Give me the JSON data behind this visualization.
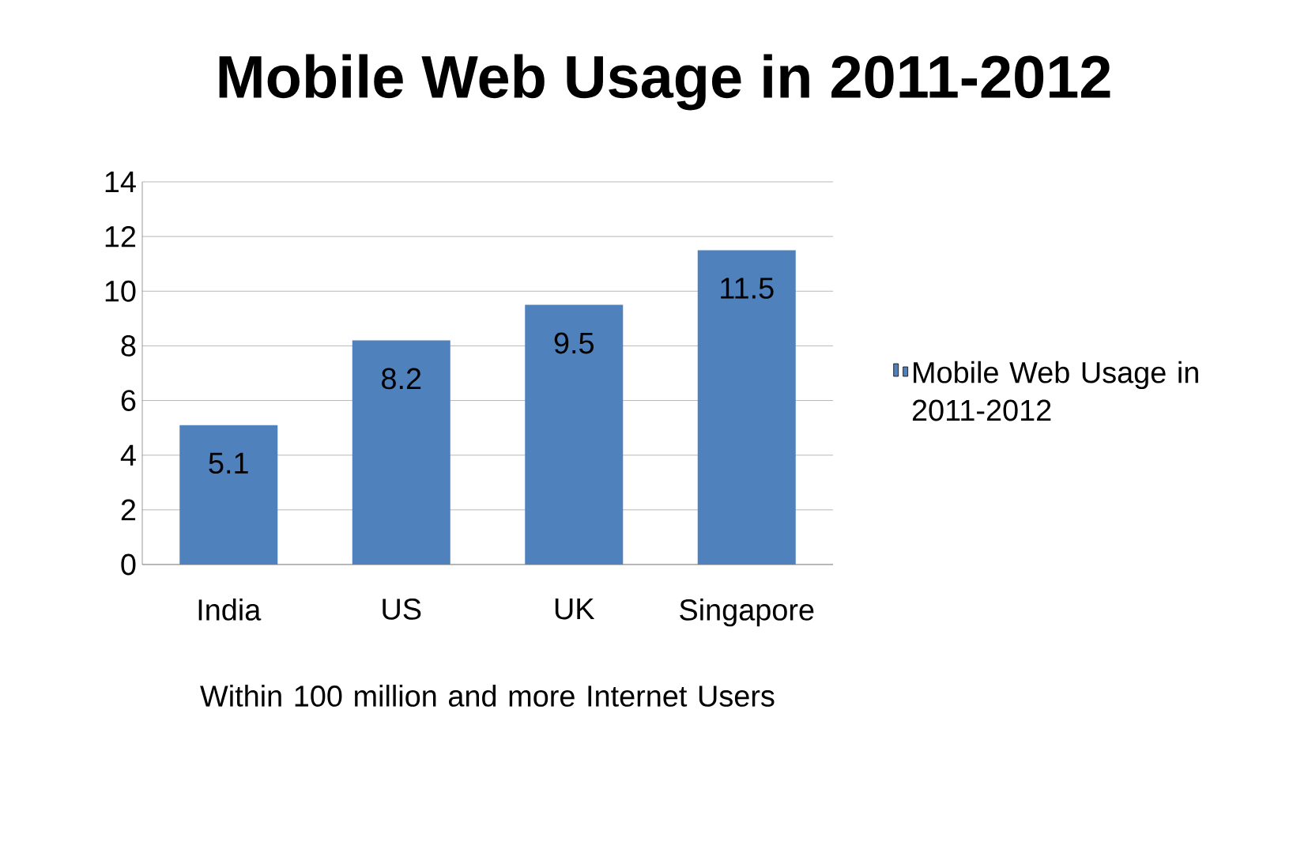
{
  "chart_data": {
    "type": "bar",
    "title": "Mobile Web Usage in 2011-2012",
    "xlabel": "Within 100 million and more Internet Users",
    "categories": [
      "India",
      "US",
      "UK",
      "Singapore"
    ],
    "series": [
      {
        "name": "Mobile Web Usage in 2011-2012",
        "color": "#4f81bd",
        "values": [
          5.1,
          8.2,
          9.5,
          11.5
        ]
      }
    ],
    "ylim": [
      0,
      14
    ],
    "yticks": [
      0,
      2,
      4,
      6,
      8,
      10,
      12,
      14
    ],
    "grid": "y",
    "data_labels": true,
    "legend": "right"
  }
}
